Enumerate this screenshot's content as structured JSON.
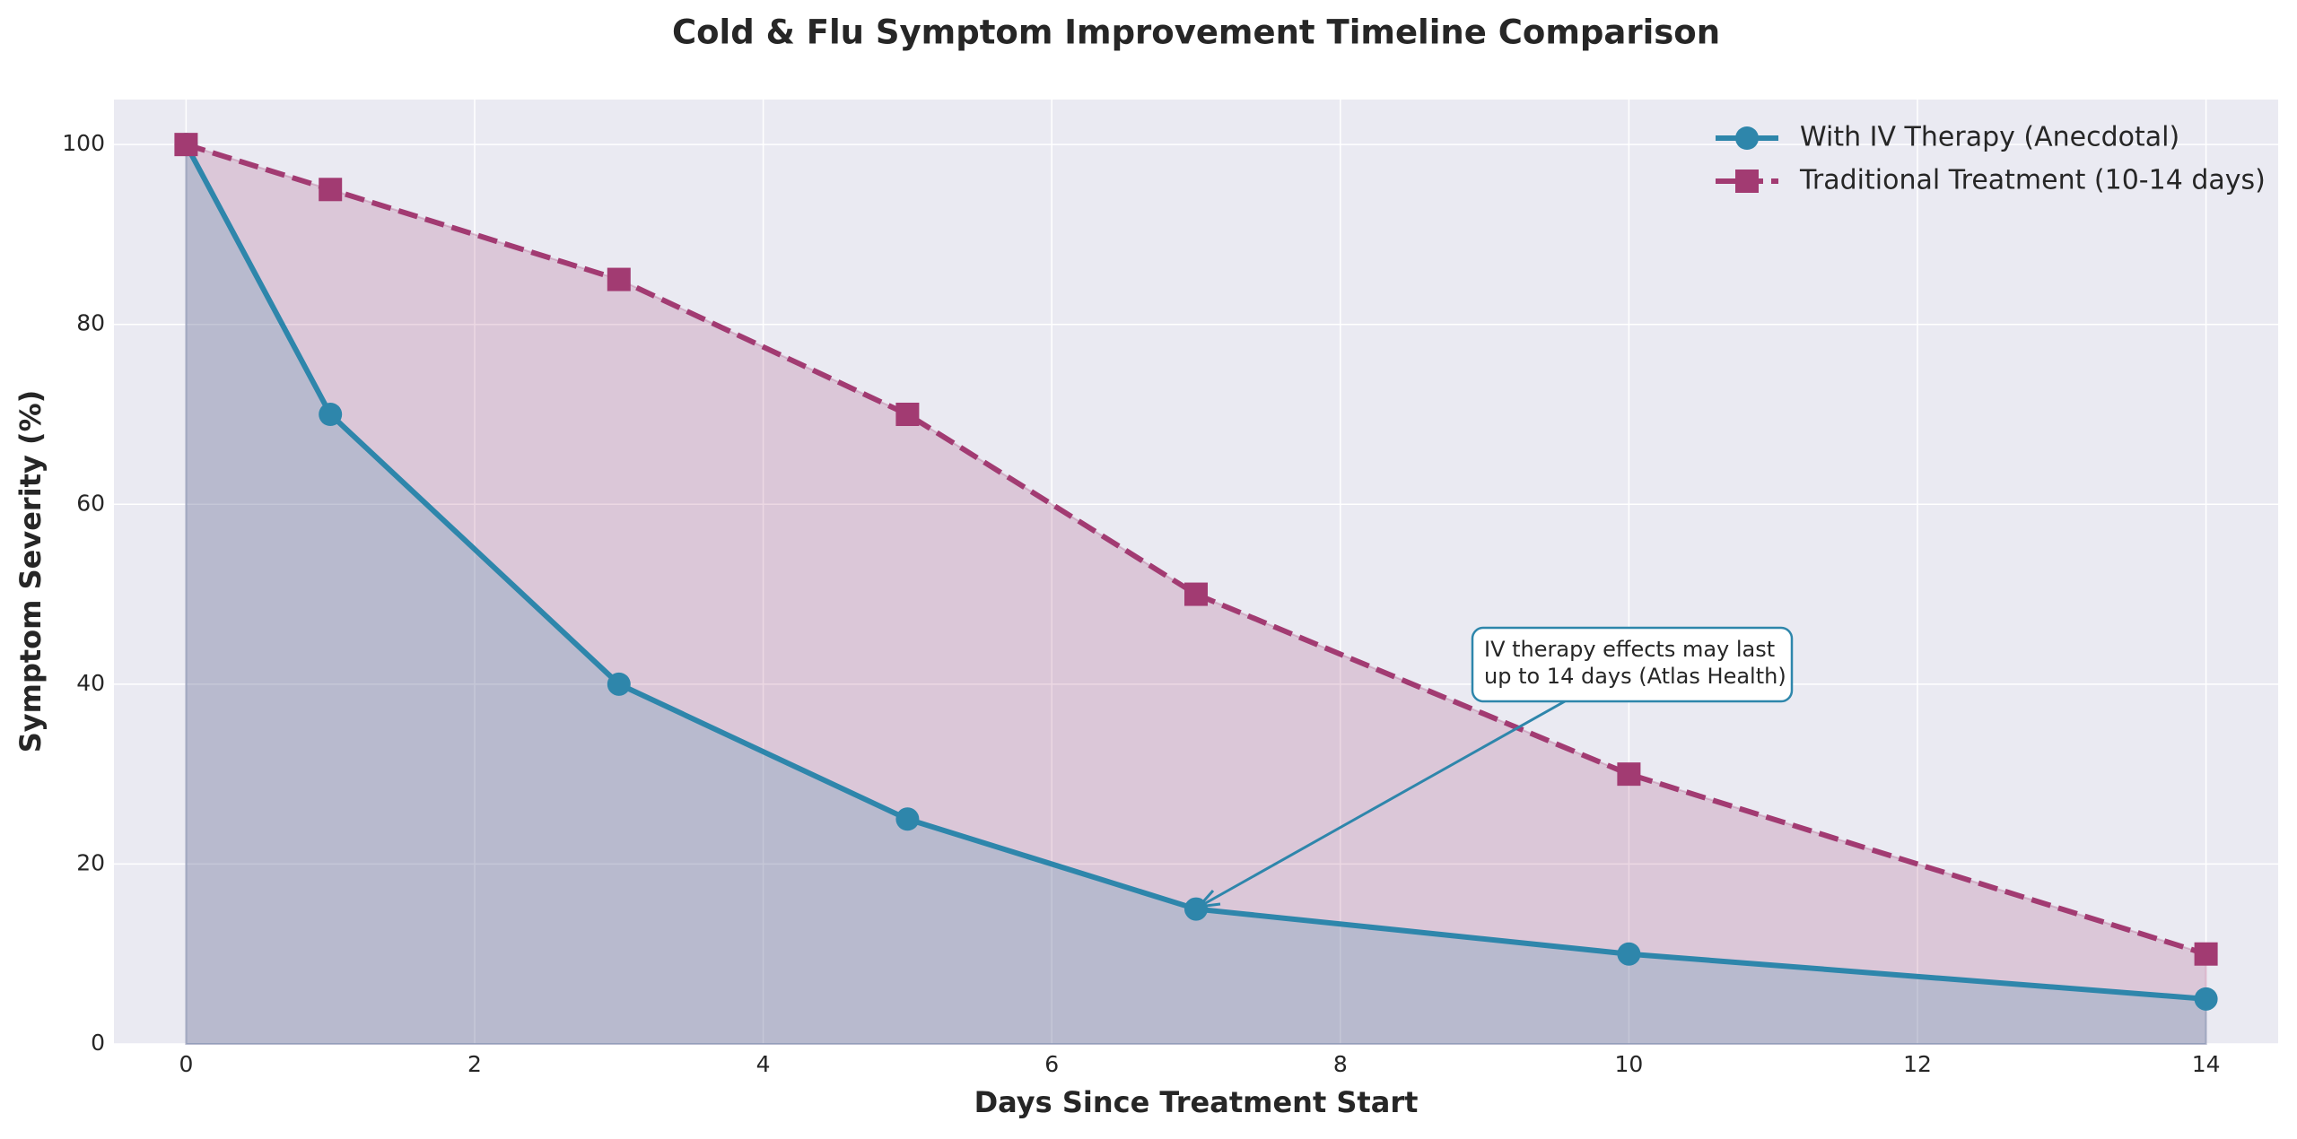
{
  "chart_data": {
    "type": "line",
    "title": "Cold & Flu Symptom Improvement Timeline Comparison",
    "x_label": "Days Since Treatment Start",
    "y_label": "Symptom Severity (%)",
    "x": [
      0,
      1,
      3,
      5,
      7,
      10,
      14
    ],
    "series": [
      {
        "name": "With IV Therapy (Anecdotal)",
        "color": "#2e86ab",
        "marker": "circle",
        "dash": false,
        "values": [
          100,
          70,
          40,
          25,
          15,
          10,
          5
        ]
      },
      {
        "name": "Traditional Treatment (10-14 days)",
        "color": "#a23b72",
        "marker": "square",
        "dash": true,
        "values": [
          100,
          95,
          85,
          70,
          50,
          30,
          10
        ]
      }
    ],
    "xlim": [
      -0.5,
      14.5
    ],
    "ylim": [
      0,
      105
    ],
    "xticks": [
      0,
      2,
      4,
      6,
      8,
      10,
      12,
      14
    ],
    "yticks": [
      0,
      20,
      40,
      60,
      80,
      100
    ],
    "grid": true,
    "fill": true,
    "legend": "upper right",
    "annotation": {
      "lines": [
        "IV therapy effects may last",
        "up to 14 days (Atlas Health)"
      ],
      "color": "#2e86ab"
    }
  }
}
